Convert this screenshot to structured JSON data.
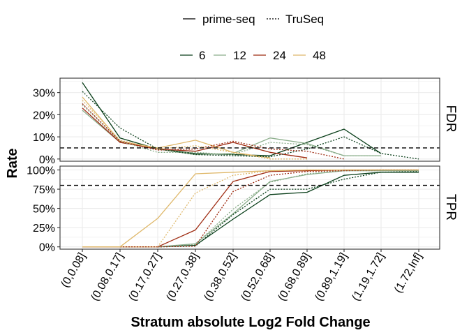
{
  "colors": {
    "c6": "#0a3f1a",
    "c12": "#8aad8a",
    "c24": "#9e2a10",
    "c48": "#dfb86a",
    "reference": "#000000",
    "grid": "#ebebeb",
    "panel_border": "#333333"
  },
  "chart_data": {
    "type": "line",
    "xlabel": "Stratum absolute Log2 Fold Change",
    "ylabel": "Rate",
    "categories": [
      "(0,0.08]",
      "(0.08,0.17]",
      "(0.17,0.27]",
      "(0.27,0.38]",
      "(0.38,0.52]",
      "(0.52,0.68]",
      "(0.68,0.89]",
      "(0.89,1.19]",
      "(1.19,1.72]",
      "(1.72,Inf]"
    ],
    "legend": {
      "placement": "top",
      "linetype_items": [
        {
          "label": "prime-seq",
          "dash": "solid"
        },
        {
          "label": "TruSeq",
          "dash": "dotted"
        }
      ],
      "color_items": [
        {
          "label": "6",
          "color_key": "c6"
        },
        {
          "label": "12",
          "color_key": "c12"
        },
        {
          "label": "24",
          "color_key": "c24"
        },
        {
          "label": "48",
          "color_key": "c48"
        }
      ]
    },
    "grid": true,
    "panels": [
      {
        "name": "FDR",
        "strip": "FDR",
        "ylim": [
          -0.01,
          0.365
        ],
        "yticks": [
          0,
          0.1,
          0.2,
          0.3
        ],
        "yticklabels": [
          "0%",
          "10%",
          "20%",
          "30%"
        ],
        "minor": [
          0.05,
          0.15,
          0.25,
          0.35
        ],
        "reference": 0.05,
        "series": [
          {
            "method": "prime-seq",
            "depth": "6",
            "color_key": "c6",
            "values": [
              0.345,
              0.095,
              0.045,
              0.025,
              0.02,
              0.015,
              0.075,
              0.135,
              0.025,
              null
            ]
          },
          {
            "method": "prime-seq",
            "depth": "12",
            "color_key": "c12",
            "values": [
              0.22,
              0.075,
              0.045,
              0.02,
              0.025,
              0.095,
              0.07,
              0.015,
              0.015,
              null
            ]
          },
          {
            "method": "prime-seq",
            "depth": "24",
            "color_key": "c24",
            "values": [
              0.23,
              0.075,
              0.045,
              0.035,
              0.075,
              0.03,
              0.005,
              null,
              null,
              null
            ]
          },
          {
            "method": "prime-seq",
            "depth": "48",
            "color_key": "c48",
            "values": [
              0.28,
              0.08,
              0.05,
              0.085,
              0.03,
              0.005,
              null,
              null,
              null,
              null
            ]
          },
          {
            "method": "TruSeq",
            "depth": "6",
            "color_key": "c6",
            "values": [
              0.305,
              0.14,
              0.045,
              0.02,
              0.015,
              0.01,
              0.045,
              0.1,
              0.025,
              0.0
            ]
          },
          {
            "method": "TruSeq",
            "depth": "12",
            "color_key": "c12",
            "values": [
              0.245,
              0.08,
              0.03,
              0.03,
              0.02,
              0.075,
              0.065,
              0.015,
              0.015,
              null
            ]
          },
          {
            "method": "TruSeq",
            "depth": "24",
            "color_key": "c24",
            "values": [
              0.25,
              0.08,
              0.04,
              0.045,
              0.08,
              0.045,
              0.035,
              0.0,
              null,
              null
            ]
          },
          {
            "method": "TruSeq",
            "depth": "48",
            "color_key": "c48",
            "values": [
              0.265,
              0.085,
              0.045,
              0.06,
              0.03,
              0.0,
              0.0,
              null,
              null,
              null
            ]
          }
        ]
      },
      {
        "name": "TPR",
        "strip": "TPR",
        "ylim": [
          -0.03,
          1.05
        ],
        "yticks": [
          0,
          0.25,
          0.5,
          0.75,
          1.0
        ],
        "yticklabels": [
          "0%",
          "25%",
          "50%",
          "75%",
          "100%"
        ],
        "minor": [
          0.125,
          0.375,
          0.625,
          0.875
        ],
        "reference": 0.8,
        "series": [
          {
            "method": "prime-seq",
            "depth": "6",
            "color_key": "c6",
            "values": [
              0.0,
              0.0,
              0.0,
              0.02,
              0.36,
              0.68,
              0.71,
              0.93,
              0.97,
              0.97
            ]
          },
          {
            "method": "prime-seq",
            "depth": "12",
            "color_key": "c12",
            "values": [
              0.0,
              0.0,
              0.0,
              0.04,
              0.43,
              0.85,
              0.94,
              0.99,
              0.99,
              0.99
            ]
          },
          {
            "method": "prime-seq",
            "depth": "24",
            "color_key": "c24",
            "values": [
              0.0,
              0.0,
              0.0,
              0.22,
              0.85,
              0.98,
              0.99,
              1.0,
              1.0,
              1.0
            ]
          },
          {
            "method": "prime-seq",
            "depth": "48",
            "color_key": "c48",
            "values": [
              0.0,
              0.0,
              0.37,
              0.95,
              0.97,
              0.99,
              1.0,
              1.0,
              1.0,
              1.0
            ]
          },
          {
            "method": "TruSeq",
            "depth": "6",
            "color_key": "c6",
            "values": [
              0.0,
              0.0,
              0.0,
              0.01,
              0.42,
              0.75,
              0.75,
              0.88,
              0.97,
              0.98
            ]
          },
          {
            "method": "TruSeq",
            "depth": "12",
            "color_key": "c12",
            "values": [
              0.0,
              0.0,
              0.0,
              0.03,
              0.49,
              0.84,
              0.95,
              0.99,
              0.99,
              0.99
            ]
          },
          {
            "method": "TruSeq",
            "depth": "24",
            "color_key": "c24",
            "values": [
              0.0,
              0.0,
              0.0,
              0.01,
              0.72,
              0.93,
              0.98,
              0.99,
              1.0,
              1.0
            ]
          },
          {
            "method": "TruSeq",
            "depth": "48",
            "color_key": "c48",
            "values": [
              0.0,
              0.0,
              0.0,
              0.7,
              0.93,
              0.99,
              1.0,
              1.0,
              1.0,
              1.0
            ]
          }
        ]
      }
    ]
  }
}
